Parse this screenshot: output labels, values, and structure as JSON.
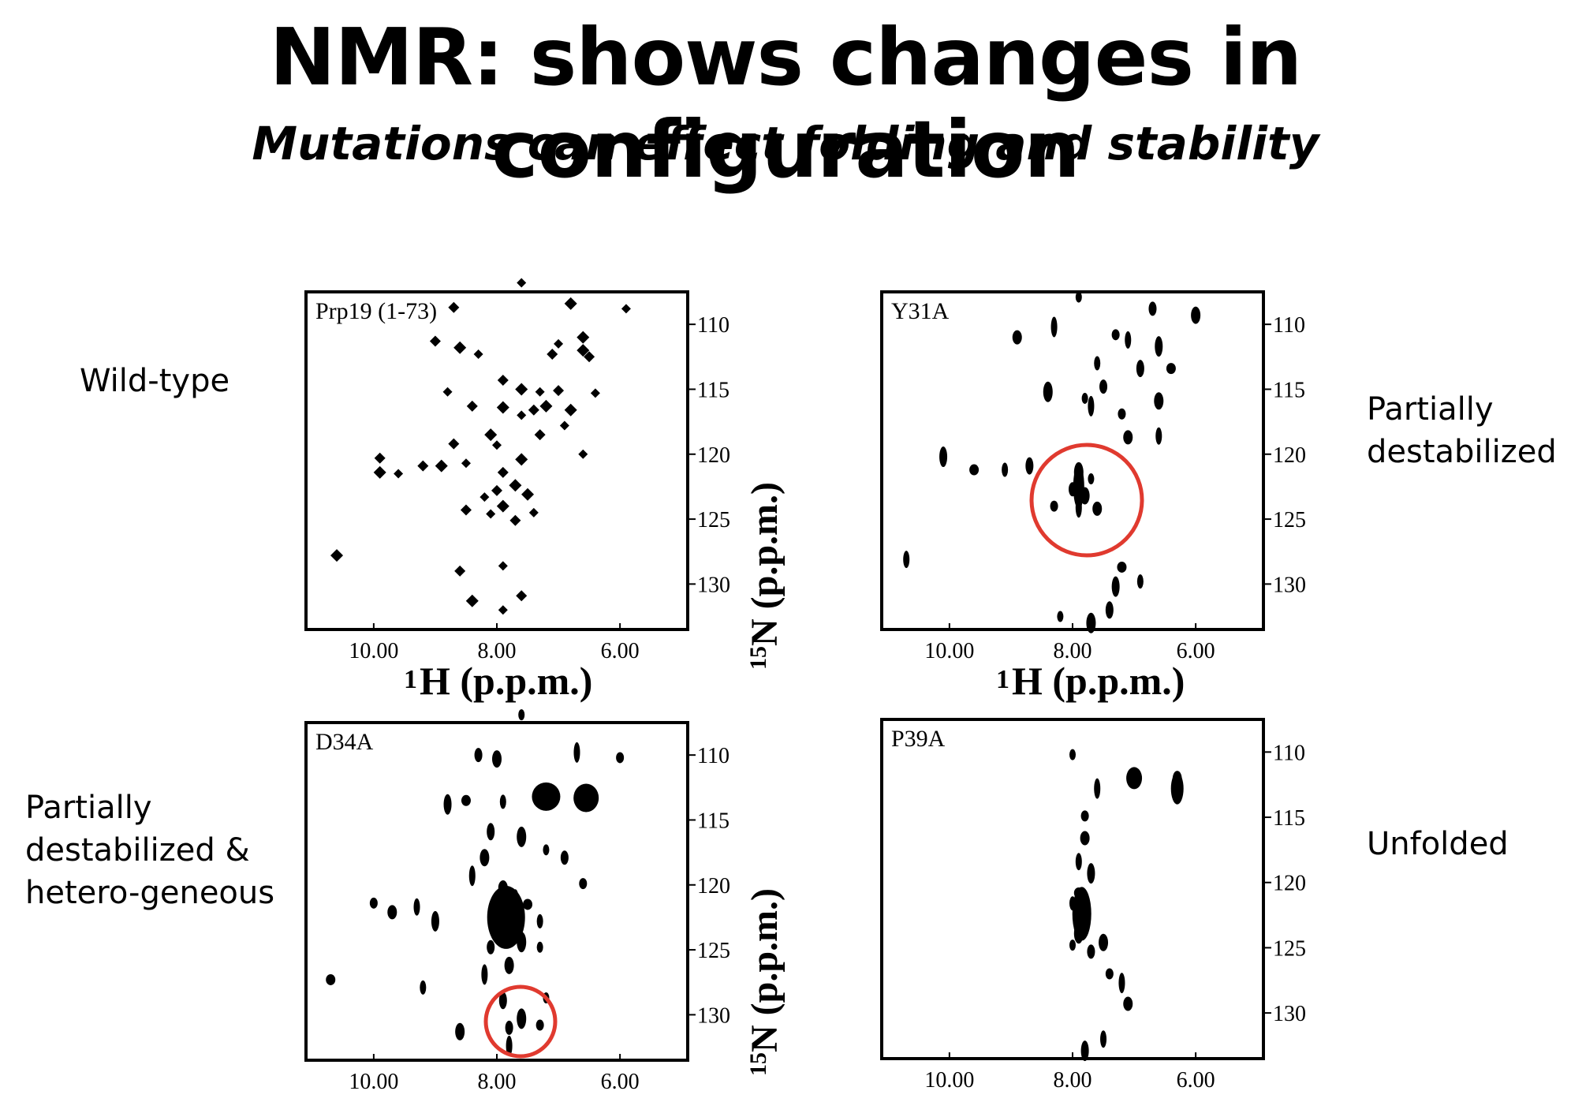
{
  "slide": {
    "title": "NMR: shows changes in configuration",
    "subtitle": "Mutations can effect folding and stability"
  },
  "labels": {
    "wild_type": "Wild-type",
    "partially_destabilized": [
      "Partially",
      "destabilized"
    ],
    "partially_destabilized_heterogeneous": [
      "Partially",
      "destabilized &",
      "hetero-geneous"
    ],
    "unfolded": "Unfolded"
  },
  "axes": {
    "x_label_sup": "1",
    "x_label_main": "H (p.p.m.)",
    "y_label_sup": "15",
    "y_label_main": "N (p.p.m.)",
    "x_ticks": [
      "10.00",
      "8.00",
      "6.00"
    ],
    "y_ticks": [
      "110",
      "115",
      "120",
      "125",
      "130"
    ]
  },
  "panels": [
    {
      "name": "Prp19 (1-73)",
      "highlight": null
    },
    {
      "name": "Y31A",
      "highlight": "red circle"
    },
    {
      "name": "D34A",
      "highlight": "red circle"
    },
    {
      "name": "P39A",
      "highlight": null
    }
  ],
  "colors": {
    "highlight": "#e03a2f",
    "peaks": "#000000"
  },
  "chart_data": [
    {
      "type": "scatter",
      "title": "Prp19 (1-73)",
      "xlabel": "1H (p.p.m.)",
      "ylabel": "15N (p.p.m.)",
      "xlim": [
        11.1,
        4.9
      ],
      "ylim": [
        107.5,
        133.5
      ],
      "points": [
        [
          7.6,
          106.8
        ],
        [
          8.7,
          108.7
        ],
        [
          6.8,
          108.4
        ],
        [
          5.9,
          108.8
        ],
        [
          9.0,
          111.3
        ],
        [
          8.6,
          111.8
        ],
        [
          8.3,
          112.3
        ],
        [
          7.1,
          112.3
        ],
        [
          6.6,
          112.0
        ],
        [
          7.0,
          111.5
        ],
        [
          6.5,
          112.5
        ],
        [
          6.6,
          111.0
        ],
        [
          8.8,
          115.2
        ],
        [
          7.9,
          114.3
        ],
        [
          7.6,
          115.0
        ],
        [
          7.3,
          115.2
        ],
        [
          7.0,
          115.1
        ],
        [
          6.8,
          116.6
        ],
        [
          6.4,
          115.3
        ],
        [
          8.4,
          116.3
        ],
        [
          7.9,
          116.4
        ],
        [
          7.6,
          117.0
        ],
        [
          7.4,
          116.6
        ],
        [
          7.2,
          116.3
        ],
        [
          6.9,
          117.8
        ],
        [
          8.7,
          119.2
        ],
        [
          8.1,
          118.5
        ],
        [
          8.0,
          119.3
        ],
        [
          7.3,
          118.5
        ],
        [
          7.6,
          120.4
        ],
        [
          6.6,
          120.0
        ],
        [
          9.9,
          120.3
        ],
        [
          9.9,
          121.4
        ],
        [
          9.6,
          121.5
        ],
        [
          9.2,
          120.9
        ],
        [
          8.9,
          120.9
        ],
        [
          8.5,
          120.7
        ],
        [
          7.9,
          121.4
        ],
        [
          7.7,
          122.4
        ],
        [
          8.2,
          123.3
        ],
        [
          8.0,
          122.8
        ],
        [
          7.9,
          124.0
        ],
        [
          8.1,
          124.6
        ],
        [
          8.5,
          124.3
        ],
        [
          7.5,
          123.1
        ],
        [
          7.4,
          124.5
        ],
        [
          7.7,
          125.1
        ],
        [
          10.6,
          127.8
        ],
        [
          7.9,
          128.6
        ],
        [
          8.6,
          129.0
        ],
        [
          8.4,
          131.3
        ],
        [
          7.9,
          132.0
        ],
        [
          7.6,
          130.9
        ]
      ]
    },
    {
      "type": "scatter",
      "title": "Y31A",
      "xlabel": "1H (p.p.m.)",
      "ylabel": "15N (p.p.m.)",
      "xlim": [
        11.1,
        4.9
      ],
      "ylim": [
        107.5,
        133.5
      ],
      "points": [
        [
          7.9,
          107.9
        ],
        [
          6.7,
          108.8
        ],
        [
          6.0,
          109.3
        ],
        [
          8.3,
          110.2
        ],
        [
          7.3,
          110.8
        ],
        [
          8.9,
          111.0
        ],
        [
          7.1,
          111.2
        ],
        [
          6.6,
          111.7
        ],
        [
          6.4,
          113.4
        ],
        [
          7.6,
          113.0
        ],
        [
          6.9,
          113.4
        ],
        [
          8.4,
          115.2
        ],
        [
          7.8,
          115.7
        ],
        [
          7.5,
          114.8
        ],
        [
          6.6,
          115.9
        ],
        [
          7.7,
          116.3
        ],
        [
          7.2,
          116.9
        ],
        [
          7.1,
          118.7
        ],
        [
          6.6,
          118.6
        ],
        [
          10.1,
          120.2
        ],
        [
          9.6,
          121.2
        ],
        [
          9.1,
          121.2
        ],
        [
          8.7,
          120.9
        ],
        [
          7.9,
          121.4
        ],
        [
          7.7,
          121.9
        ],
        [
          8.0,
          122.7
        ],
        [
          7.8,
          123.2
        ],
        [
          7.9,
          124.1
        ],
        [
          8.3,
          124.0
        ],
        [
          7.6,
          124.2
        ],
        [
          10.7,
          128.1
        ],
        [
          7.3,
          130.2
        ],
        [
          7.2,
          128.7
        ],
        [
          6.9,
          129.8
        ],
        [
          7.4,
          132.0
        ],
        [
          7.7,
          133.0
        ],
        [
          8.2,
          132.5
        ]
      ]
    },
    {
      "type": "scatter",
      "title": "D34A",
      "xlabel": "1H (p.p.m.)",
      "ylabel": "15N (p.p.m.)",
      "xlim": [
        11.1,
        4.9
      ],
      "ylim": [
        107.5,
        133.5
      ],
      "points": [
        [
          7.6,
          106.9
        ],
        [
          8.3,
          110.0
        ],
        [
          8.0,
          110.3
        ],
        [
          6.7,
          109.8
        ],
        [
          6.0,
          110.2
        ],
        [
          7.3,
          113.2
        ],
        [
          6.5,
          113.2
        ],
        [
          8.8,
          113.8
        ],
        [
          8.5,
          113.5
        ],
        [
          7.9,
          113.6
        ],
        [
          8.1,
          115.9
        ],
        [
          7.6,
          116.3
        ],
        [
          7.2,
          117.3
        ],
        [
          6.9,
          117.9
        ],
        [
          8.2,
          117.9
        ],
        [
          8.4,
          119.3
        ],
        [
          6.6,
          119.9
        ],
        [
          7.9,
          120.2
        ],
        [
          7.7,
          121.0
        ],
        [
          7.9,
          122.1
        ],
        [
          7.5,
          121.5
        ],
        [
          7.3,
          122.8
        ],
        [
          7.8,
          124.0
        ],
        [
          7.6,
          124.4
        ],
        [
          7.3,
          124.8
        ],
        [
          8.1,
          124.8
        ],
        [
          7.8,
          126.2
        ],
        [
          8.2,
          126.9
        ],
        [
          10.0,
          121.4
        ],
        [
          9.7,
          122.1
        ],
        [
          9.3,
          121.7
        ],
        [
          9.0,
          122.8
        ],
        [
          10.7,
          127.3
        ],
        [
          9.2,
          127.9
        ],
        [
          7.9,
          128.9
        ],
        [
          7.6,
          130.3
        ],
        [
          7.2,
          128.7
        ],
        [
          7.8,
          131.0
        ],
        [
          8.6,
          131.3
        ],
        [
          7.8,
          132.4
        ],
        [
          7.3,
          130.8
        ]
      ]
    },
    {
      "type": "scatter",
      "title": "P39A",
      "xlabel": "1H (p.p.m.)",
      "ylabel": "15N (p.p.m.)",
      "xlim": [
        11.1,
        4.9
      ],
      "ylim": [
        107.5,
        133.5
      ],
      "points": [
        [
          8.0,
          110.2
        ],
        [
          7.0,
          111.9
        ],
        [
          6.3,
          112.1
        ],
        [
          7.6,
          112.8
        ],
        [
          7.8,
          114.9
        ],
        [
          7.8,
          116.6
        ],
        [
          7.9,
          118.4
        ],
        [
          7.7,
          119.3
        ],
        [
          7.9,
          120.8
        ],
        [
          8.0,
          121.6
        ],
        [
          7.8,
          122.6
        ],
        [
          7.9,
          123.9
        ],
        [
          8.0,
          124.8
        ],
        [
          7.7,
          125.3
        ],
        [
          7.5,
          124.6
        ],
        [
          7.2,
          127.7
        ],
        [
          7.4,
          127.0
        ],
        [
          7.1,
          129.3
        ],
        [
          7.5,
          132.0
        ],
        [
          7.8,
          132.9
        ]
      ]
    }
  ]
}
